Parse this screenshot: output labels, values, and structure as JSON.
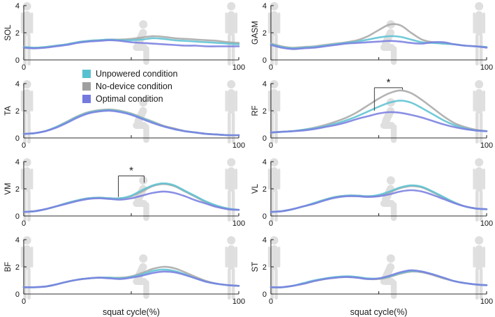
{
  "legend": {
    "items": [
      {
        "label": "Unpowered condition",
        "color": "#57c1cf"
      },
      {
        "label": "No-device condition",
        "color": "#9f9f9f"
      },
      {
        "label": "Optimal condition",
        "color": "#7479de"
      }
    ]
  },
  "chart_data": {
    "type": "line",
    "x": [
      0,
      5,
      10,
      15,
      20,
      25,
      30,
      35,
      40,
      45,
      50,
      55,
      60,
      65,
      70,
      75,
      80,
      85,
      90,
      95,
      100
    ],
    "xlabel": "squat cycle(%)",
    "xlim": [
      0,
      100
    ],
    "ylim": [
      0,
      4
    ],
    "yticks": [
      0,
      2,
      4
    ],
    "ytick_labels": [
      "0",
      "2",
      "4"
    ],
    "xticks": [
      0,
      50,
      100
    ],
    "xtick_labels": [
      "0",
      "",
      "100"
    ],
    "grid": false,
    "legend_position": "between-row1-row2-left-column",
    "colors": {
      "unpowered": "#5fc3d3",
      "nodevice": "#a9a9a9",
      "optimal": "#7a7fe0"
    },
    "axis_color": "#2f2f2f",
    "silhouette_color": "#d8d8d8",
    "series_names": {
      "unpowered": "Unpowered condition",
      "nodevice": "No-device condition",
      "optimal": "Optimal condition"
    },
    "subplots": [
      {
        "muscle": "SOL",
        "sig": null,
        "series": {
          "nodevice": [
            0.95,
            0.9,
            0.95,
            1.05,
            1.15,
            1.3,
            1.4,
            1.45,
            1.5,
            1.5,
            1.55,
            1.65,
            1.75,
            1.7,
            1.6,
            1.55,
            1.5,
            1.45,
            1.4,
            1.3,
            1.25
          ],
          "unpowered": [
            0.95,
            0.9,
            0.95,
            1.05,
            1.15,
            1.3,
            1.4,
            1.45,
            1.5,
            1.45,
            1.45,
            1.5,
            1.6,
            1.55,
            1.45,
            1.4,
            1.35,
            1.3,
            1.25,
            1.2,
            1.15
          ],
          "optimal": [
            0.9,
            0.85,
            0.9,
            1.0,
            1.1,
            1.25,
            1.35,
            1.4,
            1.45,
            1.4,
            1.3,
            1.25,
            1.2,
            1.15,
            1.1,
            1.05,
            1.05,
            1.0,
            1.0,
            1.0,
            1.0
          ]
        }
      },
      {
        "muscle": "GASM",
        "sig": null,
        "series": {
          "nodevice": [
            1.2,
            1.0,
            0.9,
            0.95,
            1.0,
            1.1,
            1.2,
            1.3,
            1.45,
            1.75,
            2.2,
            2.6,
            2.55,
            2.0,
            1.5,
            1.3,
            1.2,
            1.15,
            1.05,
            1.0,
            0.95
          ],
          "unpowered": [
            1.15,
            0.95,
            0.85,
            0.9,
            0.95,
            1.05,
            1.15,
            1.25,
            1.35,
            1.5,
            1.65,
            1.75,
            1.7,
            1.5,
            1.3,
            1.25,
            1.2,
            1.15,
            1.05,
            1.0,
            0.95
          ],
          "optimal": [
            1.1,
            0.9,
            0.8,
            0.85,
            0.9,
            1.0,
            1.1,
            1.2,
            1.25,
            1.3,
            1.35,
            1.4,
            1.35,
            1.25,
            1.2,
            1.3,
            1.3,
            1.15,
            1.05,
            1.0,
            0.9
          ]
        }
      },
      {
        "muscle": "TA",
        "sig": null,
        "series": {
          "nodevice": [
            0.3,
            0.35,
            0.5,
            0.8,
            1.2,
            1.6,
            1.9,
            2.05,
            2.1,
            2.0,
            1.8,
            1.5,
            1.2,
            0.9,
            0.7,
            0.5,
            0.4,
            0.3,
            0.25,
            0.2,
            0.2
          ],
          "unpowered": [
            0.3,
            0.35,
            0.5,
            0.8,
            1.15,
            1.55,
            1.85,
            2.0,
            2.05,
            1.95,
            1.75,
            1.45,
            1.15,
            0.85,
            0.65,
            0.5,
            0.4,
            0.3,
            0.25,
            0.2,
            0.2
          ],
          "optimal": [
            0.3,
            0.35,
            0.5,
            0.75,
            1.1,
            1.5,
            1.8,
            1.95,
            2.0,
            1.9,
            1.7,
            1.4,
            1.1,
            0.85,
            0.65,
            0.5,
            0.4,
            0.3,
            0.25,
            0.2,
            0.2
          ]
        }
      },
      {
        "muscle": "RF",
        "sig": {
          "x1": 48,
          "x2": 61,
          "y_top": 3.7,
          "y1": 2.0,
          "y2": 3.55,
          "label": "*"
        },
        "series": {
          "nodevice": [
            0.4,
            0.45,
            0.5,
            0.6,
            0.75,
            0.95,
            1.2,
            1.5,
            1.9,
            2.4,
            2.9,
            3.3,
            3.5,
            3.3,
            2.8,
            2.2,
            1.6,
            1.1,
            0.8,
            0.6,
            0.5
          ],
          "unpowered": [
            0.4,
            0.45,
            0.5,
            0.6,
            0.7,
            0.85,
            1.05,
            1.3,
            1.6,
            1.95,
            2.3,
            2.6,
            2.75,
            2.6,
            2.2,
            1.75,
            1.3,
            0.95,
            0.7,
            0.55,
            0.5
          ],
          "optimal": [
            0.4,
            0.45,
            0.5,
            0.55,
            0.65,
            0.8,
            0.95,
            1.15,
            1.4,
            1.6,
            1.8,
            1.9,
            1.85,
            1.7,
            1.5,
            1.25,
            1.0,
            0.8,
            0.65,
            0.55,
            0.5
          ]
        }
      },
      {
        "muscle": "VM",
        "sig": {
          "x1": 44,
          "x2": 56,
          "y_top": 2.95,
          "y1": 1.4,
          "y2": 2.45,
          "label": "*"
        },
        "series": {
          "nodevice": [
            0.3,
            0.35,
            0.5,
            0.7,
            0.95,
            1.15,
            1.3,
            1.35,
            1.3,
            1.3,
            1.45,
            1.8,
            2.2,
            2.35,
            2.2,
            1.8,
            1.4,
            1.0,
            0.7,
            0.5,
            0.45
          ],
          "unpowered": [
            0.3,
            0.35,
            0.5,
            0.7,
            0.95,
            1.15,
            1.3,
            1.35,
            1.3,
            1.3,
            1.5,
            1.9,
            2.25,
            2.4,
            2.25,
            1.85,
            1.45,
            1.05,
            0.75,
            0.55,
            0.45
          ],
          "optimal": [
            0.3,
            0.35,
            0.5,
            0.7,
            0.9,
            1.1,
            1.25,
            1.3,
            1.25,
            1.2,
            1.3,
            1.5,
            1.7,
            1.8,
            1.7,
            1.45,
            1.15,
            0.9,
            0.65,
            0.5,
            0.45
          ]
        }
      },
      {
        "muscle": "VL",
        "sig": null,
        "series": {
          "nodevice": [
            0.3,
            0.35,
            0.5,
            0.7,
            0.95,
            1.2,
            1.4,
            1.5,
            1.5,
            1.45,
            1.5,
            1.75,
            2.05,
            2.2,
            2.1,
            1.75,
            1.35,
            1.0,
            0.7,
            0.55,
            0.5
          ],
          "unpowered": [
            0.3,
            0.35,
            0.5,
            0.7,
            0.95,
            1.2,
            1.4,
            1.5,
            1.5,
            1.45,
            1.55,
            1.8,
            2.1,
            2.25,
            2.15,
            1.8,
            1.4,
            1.0,
            0.7,
            0.55,
            0.5
          ],
          "optimal": [
            0.3,
            0.35,
            0.5,
            0.7,
            0.9,
            1.15,
            1.35,
            1.45,
            1.45,
            1.4,
            1.45,
            1.6,
            1.8,
            1.9,
            1.8,
            1.55,
            1.25,
            0.95,
            0.7,
            0.55,
            0.5
          ]
        }
      },
      {
        "muscle": "BF",
        "sig": null,
        "series": {
          "nodevice": [
            0.5,
            0.5,
            0.55,
            0.7,
            0.9,
            1.05,
            1.15,
            1.2,
            1.2,
            1.2,
            1.3,
            1.55,
            1.85,
            2.0,
            1.9,
            1.6,
            1.25,
            0.95,
            0.75,
            0.65,
            0.6
          ],
          "unpowered": [
            0.5,
            0.5,
            0.55,
            0.7,
            0.9,
            1.05,
            1.15,
            1.2,
            1.2,
            1.15,
            1.25,
            1.45,
            1.7,
            1.8,
            1.7,
            1.45,
            1.15,
            0.9,
            0.75,
            0.65,
            0.6
          ],
          "optimal": [
            0.5,
            0.5,
            0.55,
            0.7,
            0.9,
            1.05,
            1.15,
            1.2,
            1.15,
            1.1,
            1.2,
            1.35,
            1.55,
            1.65,
            1.6,
            1.4,
            1.15,
            0.9,
            0.75,
            0.65,
            0.6
          ]
        }
      },
      {
        "muscle": "ST",
        "sig": null,
        "series": {
          "nodevice": [
            0.5,
            0.5,
            0.6,
            0.75,
            0.95,
            1.1,
            1.2,
            1.25,
            1.2,
            1.1,
            1.1,
            1.25,
            1.5,
            1.65,
            1.6,
            1.4,
            1.15,
            0.95,
            0.8,
            0.7,
            0.65
          ],
          "unpowered": [
            0.5,
            0.5,
            0.6,
            0.8,
            1.0,
            1.15,
            1.25,
            1.3,
            1.25,
            1.15,
            1.15,
            1.3,
            1.55,
            1.7,
            1.65,
            1.45,
            1.2,
            0.95,
            0.8,
            0.7,
            0.65
          ],
          "optimal": [
            0.5,
            0.5,
            0.6,
            0.75,
            0.95,
            1.1,
            1.2,
            1.25,
            1.2,
            1.1,
            1.15,
            1.35,
            1.6,
            1.75,
            1.65,
            1.45,
            1.2,
            0.95,
            0.8,
            0.7,
            0.65
          ]
        }
      }
    ]
  }
}
